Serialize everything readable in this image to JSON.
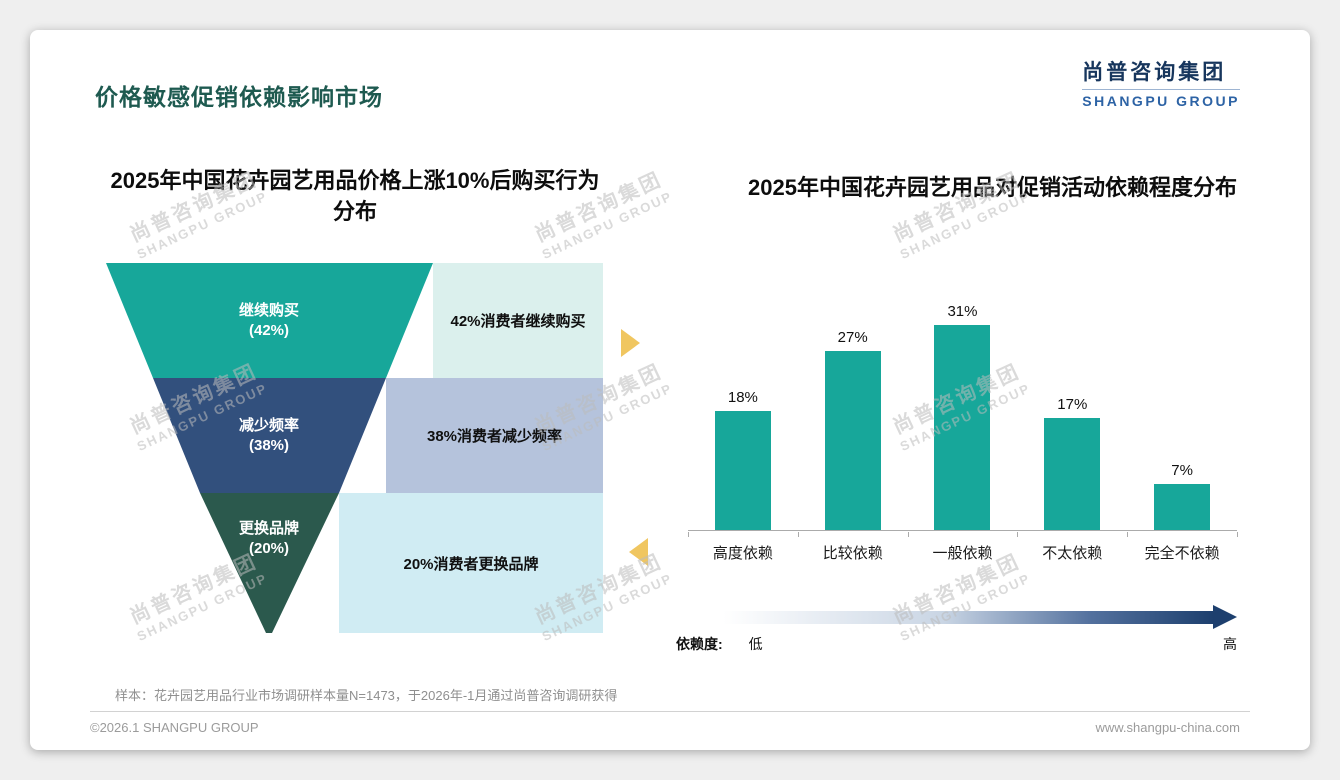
{
  "page": {
    "title": "价格敏感促销依赖影响市场",
    "logo": {
      "cn": "尚普咨询集团",
      "en": "SHANGPU GROUP"
    },
    "watermark_cn": "尚普咨询集团",
    "watermark_en": "SHANGPU GROUP",
    "note": "样本：花卉园艺用品行业市场调研样本量N=1473，于2026年-1月通过尚普咨询调研获得",
    "footer": {
      "copyright": "©2026.1 SHANGPU GROUP",
      "website": "www.shangpu-china.com"
    }
  },
  "chart_data": [
    {
      "type": "funnel",
      "title": "2025年中国花卉园艺用品价格上涨10%后购买行为分布",
      "title_lines": [
        "2025年中国花卉园艺用品价格上涨10%后购买行为",
        "分布"
      ],
      "levels": [
        {
          "label": "继续购买",
          "pct_label": "(42%)",
          "value": 42,
          "desc": "42%消费者继续购买",
          "color": "#17a79a",
          "desc_bg": "#dbf0ed"
        },
        {
          "label": "减少频率",
          "pct_label": "(38%)",
          "value": 38,
          "desc": "38%消费者减少频率",
          "color": "#32507d",
          "desc_bg": "#b5c3dc"
        },
        {
          "label": "更换品牌",
          "pct_label": "(20%)",
          "value": 20,
          "desc": "20%消费者更换品牌",
          "color": "#2b594d",
          "desc_bg": "#d0ecf3"
        }
      ],
      "arrow_color": "#f0c660"
    },
    {
      "type": "bar",
      "title": "2025年中国花卉园艺用品对促销活动依赖程度分布",
      "categories": [
        "高度依赖",
        "比较依赖",
        "一般依赖",
        "不太依赖",
        "完全不依赖"
      ],
      "values": [
        18,
        27,
        31,
        17,
        7
      ],
      "unit": "%",
      "bar_color": "#17a79a",
      "ylim": [
        0,
        33
      ],
      "grid": false,
      "axis_note": {
        "name": "依赖度:",
        "low": "低",
        "high": "高"
      },
      "gradient": [
        "#ffffff",
        "#1d3f6e"
      ]
    }
  ]
}
